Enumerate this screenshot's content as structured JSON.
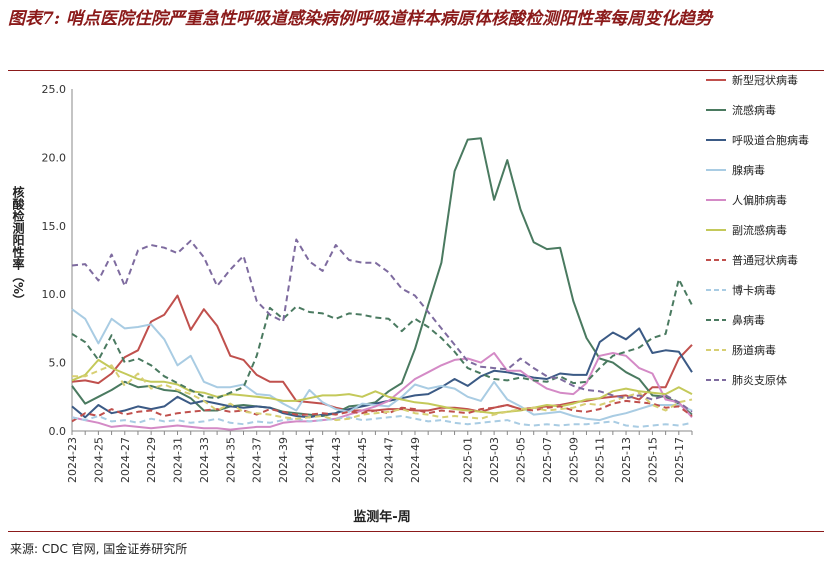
{
  "title": "图表7: 哨点医院住院严重急性呼吸道感染病例呼吸道样本病原体核酸检测阳性率每周变化趋势",
  "source": "来源: CDC 官网, 国金证券研究所",
  "chart_data": {
    "type": "line",
    "xlabel": "监测年-周",
    "ylabel": "核酸检测阳性率（%）",
    "ylim": [
      0,
      25
    ],
    "yticks": [
      "0.0",
      "5.0",
      "10.0",
      "15.0",
      "20.0",
      "25.0"
    ],
    "ytick_values": [
      0,
      5,
      10,
      15,
      20,
      25
    ],
    "categories": [
      "2024-23",
      "2024-24",
      "2024-25",
      "2024-26",
      "2024-27",
      "2024-28",
      "2024-29",
      "2024-30",
      "2024-31",
      "2024-32",
      "2024-33",
      "2024-34",
      "2024-35",
      "2024-36",
      "2024-37",
      "2024-38",
      "2024-39",
      "2024-40",
      "2024-41",
      "2024-42",
      "2024-43",
      "2024-44",
      "2024-45",
      "2024-46",
      "2024-47",
      "2024-48",
      "2024-49",
      "2024-50",
      "2024-51",
      "2024-52",
      "2025-01",
      "2025-02",
      "2025-03",
      "2025-04",
      "2025-05",
      "2025-06",
      "2025-07",
      "2025-08",
      "2025-09",
      "2025-10",
      "2025-11",
      "2025-12",
      "2025-13",
      "2025-14",
      "2025-15",
      "2025-16",
      "2025-17",
      "2025-18"
    ],
    "tick_labels": [
      "2024-23",
      "2024-25",
      "2024-27",
      "2024-29",
      "2024-31",
      "2024-33",
      "2024-35",
      "2024-37",
      "2024-39",
      "2024-41",
      "2024-43",
      "2024-45",
      "2024-47",
      "2024-49",
      "2025-01",
      "2025-03",
      "2025-05",
      "2025-07",
      "2025-09",
      "2025-11",
      "2025-13",
      "2025-15",
      "2025-17"
    ],
    "legend_position": "right",
    "series": [
      {
        "name": "新型冠状病毒",
        "color": "#c0504d",
        "dash": "solid",
        "values": [
          3.6,
          3.7,
          3.5,
          4.2,
          5.4,
          5.9,
          8.0,
          8.5,
          9.9,
          7.4,
          8.9,
          7.7,
          5.5,
          5.2,
          4.1,
          3.6,
          3.6,
          2.2,
          2.1,
          2.0,
          1.7,
          1.5,
          1.5,
          1.5,
          1.6,
          1.6,
          1.5,
          1.5,
          1.7,
          1.7,
          1.6,
          1.4,
          1.7,
          1.9,
          1.6,
          1.7,
          1.8,
          1.9,
          2.1,
          2.2,
          2.4,
          2.5,
          2.6,
          2.3,
          3.2,
          3.2,
          5.3,
          6.3
        ]
      },
      {
        "name": "流感病毒",
        "color": "#4a7a60",
        "dash": "solid",
        "values": [
          3.3,
          2.0,
          2.5,
          3.0,
          3.6,
          3.2,
          3.3,
          3.0,
          2.9,
          2.4,
          1.5,
          1.5,
          1.8,
          1.9,
          1.8,
          1.7,
          1.4,
          1.3,
          1.2,
          1.1,
          1.3,
          1.8,
          1.9,
          2.1,
          2.9,
          3.5,
          6.0,
          9.2,
          12.3,
          19.0,
          21.3,
          21.4,
          16.9,
          19.8,
          16.2,
          13.8,
          13.3,
          13.4,
          9.5,
          6.8,
          5.3,
          5.0,
          4.3,
          3.8,
          2.6,
          2.5,
          2.0,
          1.2
        ]
      },
      {
        "name": "呼吸道合胞病毒",
        "color": "#3b5a85",
        "dash": "solid",
        "values": [
          1.8,
          1.0,
          1.9,
          1.3,
          1.5,
          1.8,
          1.6,
          1.8,
          2.5,
          2.0,
          2.2,
          2.0,
          1.8,
          1.7,
          1.8,
          1.7,
          1.3,
          1.1,
          1.0,
          1.2,
          1.3,
          1.6,
          1.8,
          2.0,
          2.2,
          2.4,
          2.6,
          2.7,
          3.2,
          3.8,
          3.3,
          4.0,
          4.4,
          4.3,
          4.1,
          3.9,
          3.8,
          4.2,
          4.1,
          4.1,
          6.5,
          7.2,
          6.7,
          7.5,
          5.7,
          5.9,
          5.8,
          4.3
        ]
      },
      {
        "name": "腺病毒",
        "color": "#a9cce3",
        "dash": "solid",
        "values": [
          8.9,
          8.2,
          6.4,
          8.2,
          7.5,
          7.6,
          7.8,
          6.7,
          4.8,
          5.5,
          3.6,
          3.2,
          3.2,
          3.4,
          2.7,
          2.6,
          2.0,
          1.5,
          3.0,
          2.1,
          1.6,
          1.4,
          2.0,
          1.9,
          1.8,
          2.5,
          3.4,
          3.1,
          3.3,
          3.1,
          2.5,
          2.2,
          3.6,
          2.3,
          1.8,
          1.2,
          1.3,
          1.4,
          1.1,
          0.9,
          0.8,
          1.1,
          1.3,
          1.6,
          1.9,
          1.9,
          1.9,
          1.5
        ]
      },
      {
        "name": "人偏肺病毒",
        "color": "#d48ac6",
        "dash": "solid",
        "values": [
          1.0,
          0.8,
          0.6,
          0.3,
          0.4,
          0.3,
          0.2,
          0.3,
          0.4,
          0.3,
          0.2,
          0.2,
          0.1,
          0.2,
          0.3,
          0.3,
          0.6,
          0.7,
          0.7,
          0.8,
          0.9,
          1.2,
          1.5,
          1.8,
          2.2,
          3.0,
          3.8,
          4.3,
          4.8,
          5.2,
          5.3,
          5.0,
          5.7,
          4.4,
          4.4,
          3.7,
          3.1,
          2.8,
          2.7,
          3.5,
          5.5,
          5.7,
          5.5,
          4.6,
          4.2,
          2.3,
          2.1,
          1.0
        ]
      },
      {
        "name": "副流感病毒",
        "color": "#c4c95a",
        "dash": "solid",
        "values": [
          3.7,
          4.1,
          5.2,
          4.6,
          4.2,
          3.8,
          3.6,
          3.6,
          3.4,
          2.9,
          2.8,
          2.5,
          2.7,
          2.6,
          2.5,
          2.4,
          2.2,
          2.2,
          2.4,
          2.6,
          2.6,
          2.7,
          2.5,
          2.9,
          2.5,
          2.3,
          2.1,
          2.0,
          1.8,
          1.6,
          1.5,
          1.4,
          1.3,
          1.4,
          1.5,
          1.7,
          1.9,
          1.8,
          2.0,
          2.3,
          2.4,
          2.9,
          3.1,
          2.9,
          2.8,
          2.7,
          3.2,
          2.7
        ]
      },
      {
        "name": "普通冠状病毒",
        "color": "#c0504d",
        "dash": "dashed",
        "values": [
          0.7,
          1.3,
          1.1,
          1.6,
          1.2,
          1.4,
          1.5,
          1.1,
          1.3,
          1.4,
          1.5,
          1.6,
          1.4,
          1.5,
          1.2,
          1.6,
          1.4,
          1.2,
          1.2,
          1.3,
          1.2,
          1.4,
          1.3,
          1.5,
          1.3,
          1.7,
          1.6,
          1.3,
          1.5,
          1.4,
          1.3,
          1.6,
          1.7,
          1.9,
          1.6,
          1.5,
          1.7,
          1.8,
          1.5,
          1.4,
          1.6,
          2.0,
          2.2,
          2.1,
          2.0,
          1.7,
          1.8,
          1.1
        ]
      },
      {
        "name": "博卡病毒",
        "color": "#a9cce3",
        "dash": "dashed",
        "values": [
          1.0,
          0.8,
          1.1,
          0.7,
          0.8,
          0.6,
          0.9,
          0.7,
          0.8,
          0.6,
          0.7,
          0.9,
          0.6,
          0.5,
          0.7,
          0.6,
          0.8,
          0.9,
          0.7,
          0.8,
          0.9,
          1.0,
          0.8,
          0.9,
          1.0,
          1.1,
          0.9,
          0.7,
          0.8,
          0.6,
          0.5,
          0.6,
          0.7,
          0.8,
          0.5,
          0.4,
          0.5,
          0.4,
          0.5,
          0.5,
          0.6,
          0.7,
          0.4,
          0.3,
          0.4,
          0.5,
          0.4,
          0.6
        ]
      },
      {
        "name": "鼻病毒",
        "color": "#4a7a60",
        "dash": "dashed",
        "values": [
          7.1,
          6.5,
          5.2,
          7.0,
          5.0,
          5.3,
          4.8,
          4.0,
          3.5,
          3.0,
          2.5,
          2.4,
          2.8,
          3.2,
          5.5,
          9.0,
          8.2,
          9.1,
          8.7,
          8.6,
          8.2,
          8.6,
          8.5,
          8.3,
          8.2,
          7.3,
          8.2,
          7.6,
          6.8,
          5.8,
          4.6,
          4.2,
          3.8,
          3.7,
          3.9,
          3.7,
          3.6,
          4.0,
          3.5,
          3.6,
          4.6,
          5.5,
          5.8,
          6.1,
          6.8,
          7.1,
          11.1,
          9.2
        ]
      },
      {
        "name": "肠道病毒",
        "color": "#d7cf73",
        "dash": "dashed",
        "values": [
          4.0,
          4.0,
          4.4,
          4.8,
          3.3,
          4.2,
          3.1,
          3.4,
          3.0,
          2.7,
          2.2,
          1.5,
          2.0,
          1.4,
          1.3,
          1.2,
          1.0,
          0.9,
          1.0,
          1.1,
          0.8,
          0.9,
          1.2,
          1.3,
          1.4,
          1.6,
          1.3,
          1.2,
          1.0,
          1.1,
          1.0,
          0.9,
          1.2,
          1.4,
          1.6,
          1.7,
          1.5,
          1.6,
          1.7,
          2.0,
          1.9,
          2.2,
          2.5,
          2.8,
          1.9,
          1.5,
          2.1,
          2.3
        ]
      },
      {
        "name": "肺炎支原体",
        "color": "#7e6b9f",
        "dash": "dashed",
        "values": [
          12.1,
          12.2,
          11.0,
          12.9,
          10.6,
          13.2,
          13.6,
          13.4,
          13.0,
          13.9,
          12.7,
          10.6,
          11.8,
          12.8,
          9.5,
          8.5,
          8.0,
          14.0,
          12.4,
          11.7,
          13.6,
          12.5,
          12.3,
          12.3,
          11.6,
          10.4,
          9.9,
          8.7,
          7.5,
          6.3,
          5.1,
          4.7,
          4.6,
          4.5,
          5.3,
          4.6,
          4.0,
          3.8,
          3.3,
          3.0,
          2.9,
          2.6,
          2.4,
          2.6,
          2.3,
          2.6,
          2.1,
          1.4
        ]
      }
    ]
  }
}
